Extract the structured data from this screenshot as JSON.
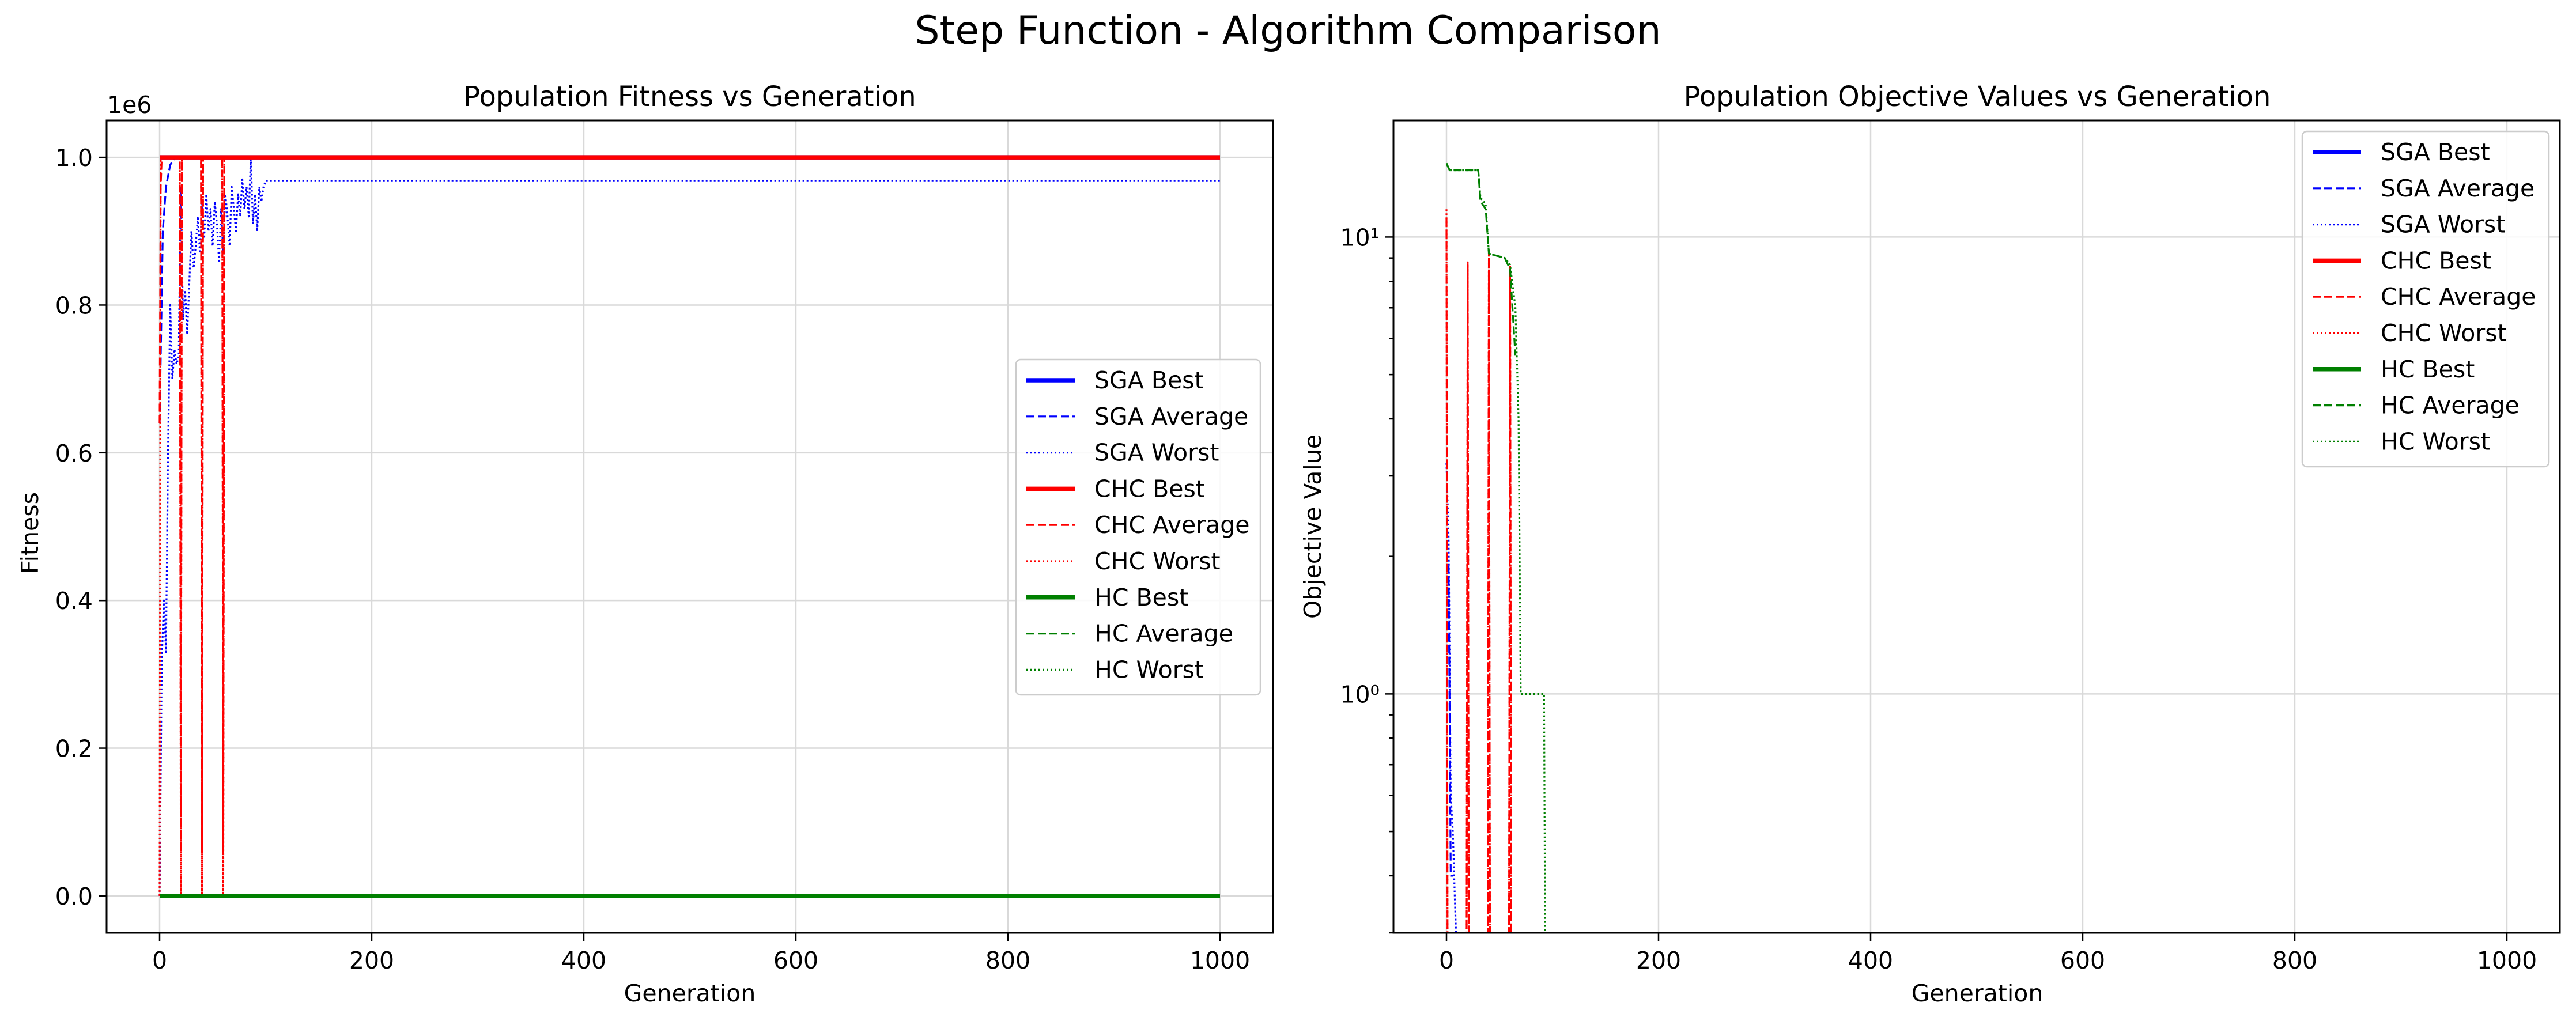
{
  "figure": {
    "title": "Step Function - Algorithm Comparison"
  },
  "chart_data": [
    {
      "type": "line",
      "title": "Population Fitness vs Generation",
      "xlabel": "Generation",
      "ylabel": "Fitness",
      "y_offset_label": "1e6",
      "xscale": "linear",
      "yscale": "linear",
      "xlim": [
        -50,
        1050
      ],
      "ylim": [
        -50000,
        1050000
      ],
      "xticks": [
        0,
        200,
        400,
        600,
        800,
        1000
      ],
      "xtick_labels": [
        "0",
        "200",
        "400",
        "600",
        "800",
        "1000"
      ],
      "yticks": [
        0,
        200000,
        400000,
        600000,
        800000,
        1000000
      ],
      "ytick_labels": [
        "0.0",
        "0.2",
        "0.4",
        "0.6",
        "0.8",
        "1.0"
      ],
      "grid": true,
      "legend_position": "center-right",
      "series": [
        {
          "name": "SGA Best",
          "color": "#0000ff",
          "style": "solid",
          "width": "thick",
          "points": [
            [
              0,
              1000000
            ],
            [
              1000,
              1000000
            ]
          ]
        },
        {
          "name": "SGA Average",
          "color": "#0000ff",
          "style": "dashed",
          "width": "thin",
          "points": [
            [
              0,
              640000
            ],
            [
              3,
              900000
            ],
            [
              6,
              960000
            ],
            [
              10,
              990000
            ],
            [
              15,
              1000000
            ],
            [
              1000,
              1000000
            ]
          ]
        },
        {
          "name": "SGA Worst",
          "color": "#0000ff",
          "style": "dotted",
          "width": "thin",
          "points": [
            [
              0,
              0
            ],
            [
              2,
              320000
            ],
            [
              4,
              400000
            ],
            [
              6,
              330000
            ],
            [
              8,
              610000
            ],
            [
              10,
              800000
            ],
            [
              12,
              700000
            ],
            [
              14,
              740000
            ],
            [
              16,
              720000
            ],
            [
              18,
              730000
            ],
            [
              20,
              960000
            ],
            [
              22,
              780000
            ],
            [
              24,
              820000
            ],
            [
              26,
              760000
            ],
            [
              28,
              830000
            ],
            [
              30,
              900000
            ],
            [
              32,
              850000
            ],
            [
              34,
              880000
            ],
            [
              36,
              920000
            ],
            [
              38,
              870000
            ],
            [
              40,
              940000
            ],
            [
              42,
              890000
            ],
            [
              44,
              950000
            ],
            [
              46,
              900000
            ],
            [
              48,
              930000
            ],
            [
              50,
              880000
            ],
            [
              52,
              940000
            ],
            [
              54,
              910000
            ],
            [
              56,
              860000
            ],
            [
              58,
              930000
            ],
            [
              60,
              870000
            ],
            [
              62,
              950000
            ],
            [
              64,
              920000
            ],
            [
              66,
              880000
            ],
            [
              68,
              960000
            ],
            [
              70,
              930000
            ],
            [
              72,
              900000
            ],
            [
              74,
              950000
            ],
            [
              76,
              920000
            ],
            [
              78,
              970000
            ],
            [
              80,
              930000
            ],
            [
              82,
              960000
            ],
            [
              84,
              920000
            ],
            [
              86,
              1000000
            ],
            [
              88,
              910000
            ],
            [
              90,
              950000
            ],
            [
              92,
              900000
            ],
            [
              94,
              960000
            ],
            [
              96,
              940000
            ],
            [
              98,
              960000
            ],
            [
              100,
              968000
            ],
            [
              1000,
              968000
            ]
          ]
        },
        {
          "name": "CHC Best",
          "color": "#ff0000",
          "style": "solid",
          "width": "thick",
          "points": [
            [
              0,
              1000000
            ],
            [
              1000,
              1000000
            ]
          ]
        },
        {
          "name": "CHC Average",
          "color": "#ff0000",
          "style": "dashed",
          "width": "thin",
          "points": [
            [
              0,
              640000
            ],
            [
              1,
              960000
            ],
            [
              2,
              1000000
            ],
            [
              19,
              1000000
            ],
            [
              20,
              60000
            ],
            [
              21,
              1000000
            ],
            [
              39,
              1000000
            ],
            [
              40,
              60000
            ],
            [
              41,
              1000000
            ],
            [
              59,
              1000000
            ],
            [
              60,
              60000
            ],
            [
              61,
              1000000
            ],
            [
              1000,
              1000000
            ]
          ]
        },
        {
          "name": "CHC Worst",
          "color": "#ff0000",
          "style": "dotted",
          "width": "thin",
          "points": [
            [
              0,
              0
            ],
            [
              1,
              1000000
            ],
            [
              19,
              1000000
            ],
            [
              20,
              0
            ],
            [
              21,
              1000000
            ],
            [
              39,
              1000000
            ],
            [
              40,
              0
            ],
            [
              41,
              1000000
            ],
            [
              59,
              1000000
            ],
            [
              60,
              0
            ],
            [
              61,
              1000000
            ],
            [
              1000,
              1000000
            ]
          ]
        },
        {
          "name": "HC Best",
          "color": "#008000",
          "style": "solid",
          "width": "thick",
          "points": [
            [
              0,
              0
            ],
            [
              1000,
              0
            ]
          ]
        },
        {
          "name": "HC Average",
          "color": "#008000",
          "style": "dashed",
          "width": "thin",
          "points": [
            [
              0,
              0
            ],
            [
              1000,
              0
            ]
          ]
        },
        {
          "name": "HC Worst",
          "color": "#008000",
          "style": "dotted",
          "width": "thin",
          "points": [
            [
              0,
              0
            ],
            [
              1000,
              0
            ]
          ]
        }
      ]
    },
    {
      "type": "line",
      "title": "Population Objective Values vs Generation",
      "xlabel": "Generation",
      "ylabel": "Objective Value",
      "xscale": "linear",
      "yscale": "log",
      "xlim": [
        -50,
        1050
      ],
      "ylim": [
        0.3,
        18
      ],
      "xticks": [
        0,
        200,
        400,
        600,
        800,
        1000
      ],
      "xtick_labels": [
        "0",
        "200",
        "400",
        "600",
        "800",
        "1000"
      ],
      "yticks_major": [
        1,
        10
      ],
      "ytick_labels": [
        "10⁰",
        "10¹"
      ],
      "yticks_minor": [
        0.3,
        0.4,
        0.5,
        0.6,
        0.7,
        0.8,
        0.9,
        2,
        3,
        4,
        5,
        6,
        7,
        8,
        9
      ],
      "grid": true,
      "legend_position": "top-right",
      "series": [
        {
          "name": "SGA Best",
          "color": "#0000ff",
          "style": "solid",
          "width": "thick",
          "points": []
        },
        {
          "name": "SGA Average",
          "color": "#0000ff",
          "style": "dashed",
          "width": "thin",
          "points": [
            [
              0,
              1.9
            ],
            [
              2,
              1.9
            ],
            [
              4,
              0.4
            ],
            [
              6,
              0.4
            ]
          ]
        },
        {
          "name": "SGA Worst",
          "color": "#0000ff",
          "style": "dotted",
          "width": "thin",
          "points": [
            [
              0,
              3.2
            ],
            [
              2,
              2.2
            ],
            [
              4,
              0.6
            ],
            [
              6,
              0.5
            ],
            [
              8,
              0.35
            ],
            [
              9,
              0.3
            ]
          ]
        },
        {
          "name": "CHC Best",
          "color": "#ff0000",
          "style": "solid",
          "width": "thick",
          "points": []
        },
        {
          "name": "CHC Average",
          "color": "#ff0000",
          "style": "dashed",
          "width": "thin",
          "points": [
            [
              0,
              11.0
            ],
            [
              1,
              0.3
            ],
            [
              19,
              0.3
            ],
            [
              20,
              8.7
            ],
            [
              21,
              0.3
            ],
            [
              39,
              0.3
            ],
            [
              40,
              9.3
            ],
            [
              41,
              0.3
            ],
            [
              59,
              0.3
            ],
            [
              60,
              8.6
            ],
            [
              61,
              0.3
            ]
          ]
        },
        {
          "name": "CHC Worst",
          "color": "#ff0000",
          "style": "dotted",
          "width": "thin",
          "points": [
            [
              0,
              11.5
            ],
            [
              1,
              0.3
            ],
            [
              19,
              0.3
            ],
            [
              20,
              8.8
            ],
            [
              21,
              0.3
            ],
            [
              39,
              0.3
            ],
            [
              40,
              9.4
            ],
            [
              41,
              0.3
            ],
            [
              59,
              0.3
            ],
            [
              60,
              8.7
            ],
            [
              61,
              0.3
            ]
          ]
        },
        {
          "name": "HC Best",
          "color": "#008000",
          "style": "solid",
          "width": "thick",
          "points": []
        },
        {
          "name": "HC Average",
          "color": "#008000",
          "style": "dashed",
          "width": "thin",
          "points": [
            [
              0,
              14.5
            ],
            [
              3,
              14.0
            ],
            [
              30,
              14.0
            ],
            [
              32,
              12.0
            ],
            [
              37,
              11.5
            ],
            [
              40,
              9.2
            ],
            [
              55,
              9.0
            ],
            [
              60,
              8.5
            ],
            [
              65,
              5.5
            ]
          ]
        },
        {
          "name": "HC Worst",
          "color": "#008000",
          "style": "dotted",
          "width": "thin",
          "points": [
            [
              0,
              14.5
            ],
            [
              3,
              14.0
            ],
            [
              30,
              14.0
            ],
            [
              32,
              12.2
            ],
            [
              37,
              11.8
            ],
            [
              40,
              9.2
            ],
            [
              55,
              9.0
            ],
            [
              60,
              8.7
            ],
            [
              65,
              7.0
            ],
            [
              68,
              4.0
            ],
            [
              70,
              1.0
            ],
            [
              92,
              1.0
            ],
            [
              93,
              0.3
            ]
          ]
        }
      ]
    }
  ]
}
